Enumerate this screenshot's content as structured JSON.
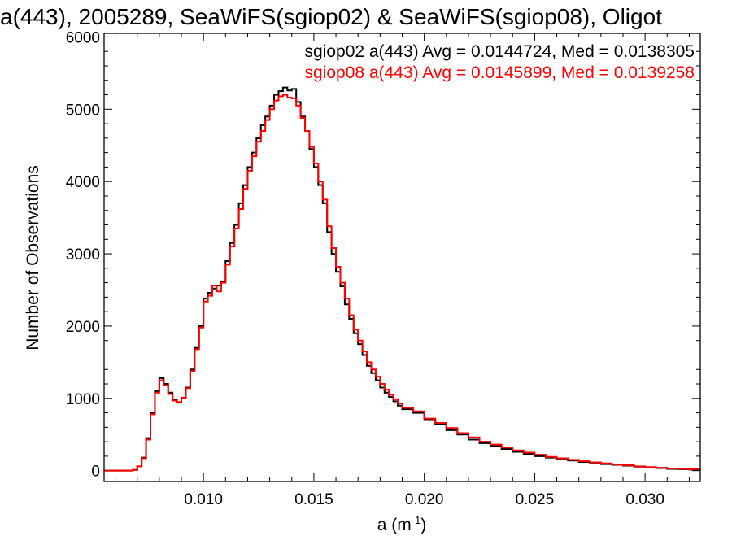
{
  "chart_data": {
    "type": "line",
    "title": "a(443), 2005289, SeaWiFS(sgiop02) & SeaWiFS(sgiop08), Oligot",
    "xlabel_base": "a (m",
    "xlabel_exp": "-1",
    "xlabel_close": ")",
    "ylabel": "Number of Observations",
    "xlim": [
      0.0055,
      0.0325
    ],
    "ylim": [
      -150,
      6050
    ],
    "xticks": [
      0.01,
      0.015,
      0.02,
      0.025,
      0.03
    ],
    "xtick_labels": [
      "0.010",
      "0.015",
      "0.020",
      "0.025",
      "0.030"
    ],
    "yticks": [
      0,
      1000,
      2000,
      3000,
      4000,
      5000,
      6000
    ],
    "ytick_labels": [
      "0",
      "1000",
      "2000",
      "3000",
      "4000",
      "5000",
      "6000"
    ],
    "legend_position": "top-right",
    "colors": {
      "sgiop02": "#000000",
      "sgiop08": "#ff0000",
      "axes": "#000000"
    },
    "series": [
      {
        "name": "sgiop02 a(443) Avg = 0.0144724, Med = 0.0138305",
        "color": "#000000",
        "x": [
          0.0055,
          0.006,
          0.0065,
          0.0068,
          0.007,
          0.0072,
          0.0074,
          0.0076,
          0.0078,
          0.008,
          0.0082,
          0.0084,
          0.0086,
          0.0088,
          0.009,
          0.0092,
          0.0094,
          0.0096,
          0.0098,
          0.01,
          0.0102,
          0.0104,
          0.0106,
          0.0108,
          0.011,
          0.0112,
          0.0114,
          0.0116,
          0.0118,
          0.012,
          0.0122,
          0.0124,
          0.0126,
          0.0128,
          0.013,
          0.0132,
          0.0134,
          0.0136,
          0.0138,
          0.014,
          0.0142,
          0.0144,
          0.0146,
          0.0148,
          0.015,
          0.0152,
          0.0154,
          0.0156,
          0.0158,
          0.016,
          0.0162,
          0.0164,
          0.0166,
          0.0168,
          0.017,
          0.0172,
          0.0174,
          0.0176,
          0.0178,
          0.018,
          0.0182,
          0.0184,
          0.0186,
          0.0188,
          0.019,
          0.0195,
          0.02,
          0.0205,
          0.021,
          0.0215,
          0.022,
          0.0225,
          0.023,
          0.0235,
          0.024,
          0.0245,
          0.025,
          0.0255,
          0.026,
          0.0265,
          0.027,
          0.0275,
          0.028,
          0.0285,
          0.029,
          0.0295,
          0.03,
          0.0305,
          0.031,
          0.0315,
          0.032,
          0.0325
        ],
        "y": [
          0,
          0,
          0,
          10,
          60,
          180,
          450,
          800,
          1100,
          1280,
          1200,
          1080,
          980,
          940,
          1000,
          1150,
          1400,
          1700,
          2000,
          2380,
          2460,
          2520,
          2560,
          2620,
          2900,
          3150,
          3400,
          3700,
          3950,
          4200,
          4400,
          4600,
          4780,
          4900,
          5050,
          5200,
          5250,
          5300,
          5260,
          5280,
          5100,
          4900,
          4700,
          4450,
          4200,
          3950,
          3700,
          3300,
          3000,
          2750,
          2550,
          2300,
          2100,
          1900,
          1750,
          1600,
          1450,
          1350,
          1250,
          1150,
          1080,
          1020,
          960,
          900,
          850,
          800,
          700,
          640,
          560,
          500,
          430,
          380,
          340,
          300,
          260,
          230,
          200,
          180,
          160,
          140,
          120,
          110,
          90,
          80,
          70,
          55,
          45,
          35,
          25,
          20,
          15,
          10
        ]
      },
      {
        "name": "sgiop08 a(443) Avg = 0.0145899, Med = 0.0139258",
        "color": "#ff0000",
        "x": [
          0.0055,
          0.006,
          0.0065,
          0.0068,
          0.007,
          0.0072,
          0.0074,
          0.0076,
          0.0078,
          0.008,
          0.0082,
          0.0084,
          0.0086,
          0.0088,
          0.009,
          0.0092,
          0.0094,
          0.0096,
          0.0098,
          0.01,
          0.0102,
          0.0104,
          0.0106,
          0.0108,
          0.011,
          0.0112,
          0.0114,
          0.0116,
          0.0118,
          0.012,
          0.0122,
          0.0124,
          0.0126,
          0.0128,
          0.013,
          0.0132,
          0.0134,
          0.0136,
          0.0138,
          0.014,
          0.0142,
          0.0144,
          0.0146,
          0.0148,
          0.015,
          0.0152,
          0.0154,
          0.0156,
          0.0158,
          0.016,
          0.0162,
          0.0164,
          0.0166,
          0.0168,
          0.017,
          0.0172,
          0.0174,
          0.0176,
          0.0178,
          0.018,
          0.0182,
          0.0184,
          0.0186,
          0.0188,
          0.019,
          0.0195,
          0.02,
          0.0205,
          0.021,
          0.0215,
          0.022,
          0.0225,
          0.023,
          0.0235,
          0.024,
          0.0245,
          0.025,
          0.0255,
          0.026,
          0.0265,
          0.027,
          0.0275,
          0.028,
          0.0285,
          0.029,
          0.0295,
          0.03,
          0.0305,
          0.031,
          0.0315,
          0.032,
          0.0325
        ],
        "y": [
          0,
          0,
          0,
          10,
          60,
          170,
          430,
          780,
          1080,
          1250,
          1180,
          1060,
          970,
          950,
          1010,
          1140,
          1380,
          1680,
          1980,
          2340,
          2420,
          2560,
          2480,
          2600,
          2850,
          3100,
          3350,
          3620,
          3900,
          4150,
          4350,
          4550,
          4700,
          4850,
          5000,
          5120,
          5180,
          5200,
          5160,
          5150,
          5050,
          4880,
          4700,
          4480,
          4250,
          4000,
          3750,
          3380,
          3080,
          2820,
          2600,
          2380,
          2150,
          1950,
          1800,
          1650,
          1500,
          1400,
          1300,
          1200,
          1120,
          1050,
          990,
          930,
          870,
          820,
          720,
          660,
          590,
          520,
          460,
          400,
          360,
          320,
          280,
          250,
          220,
          190,
          170,
          150,
          130,
          115,
          100,
          85,
          75,
          60,
          50,
          40,
          30,
          25,
          20,
          15
        ]
      }
    ]
  }
}
